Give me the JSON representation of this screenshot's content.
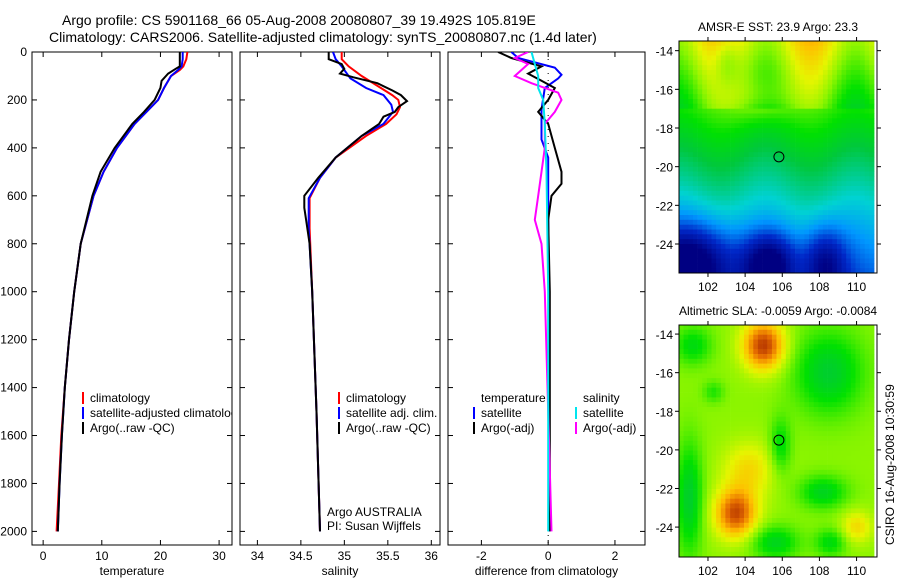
{
  "title": {
    "line1": "Argo profile: CS 5901168_66 05-Aug-2008 20080807_39 19.492S 105.819E",
    "line2": "Climatology: CARS2006. Satellite-adjusted climatology: synTS_20080807.nc (1.4d later)"
  },
  "footer_stamp": "CSIRO 16-Aug-2008 10:30:59",
  "colors": {
    "red": "#ff0000",
    "blue": "#0000ff",
    "black": "#000000",
    "cyan": "#00e5ee",
    "magenta": "#ff00ff"
  },
  "chart_data": [
    {
      "type": "line",
      "id": "temperature",
      "xlabel": "temperature",
      "xlim": [
        -1.9,
        32.2
      ],
      "ylim": [
        0,
        2055
      ],
      "xticks": [
        0,
        10,
        20,
        30
      ],
      "xtick_labels": [
        "0",
        "10",
        "20",
        "30"
      ],
      "yticks": [
        0,
        200,
        400,
        600,
        800,
        1000,
        1200,
        1400,
        1600,
        1800,
        2000
      ],
      "ytick_labels": [
        "0",
        "200",
        "400",
        "600",
        "800",
        "1000",
        "1200",
        "1400",
        "1600",
        "1800",
        "2000"
      ],
      "legend": [
        {
          "label": "climatology",
          "color": "#ff0000"
        },
        {
          "label": "satellite-adjusted climatology",
          "color": "#0000ff"
        },
        {
          "label": "Argo(..raw -QC)",
          "color": "#000000"
        }
      ],
      "series": [
        {
          "name": "climatology",
          "color": "#ff0000",
          "depth": [
            0,
            30,
            60,
            75,
            100,
            150,
            200,
            250,
            300,
            400,
            500,
            600,
            800,
            1000,
            1200,
            1400,
            1600,
            1800,
            2000
          ],
          "values": [
            24.6,
            24.4,
            23.9,
            23.3,
            21.8,
            20.6,
            19.6,
            17.6,
            15.6,
            12.6,
            10.3,
            8.6,
            6.4,
            5.3,
            4.4,
            3.7,
            3.1,
            2.7,
            2.3
          ]
        },
        {
          "name": "satellite-adjusted climatology",
          "color": "#0000ff",
          "depth": [
            0,
            30,
            60,
            75,
            100,
            150,
            200,
            250,
            300,
            400,
            500,
            600,
            800,
            1000,
            1200,
            1400,
            1600,
            1800,
            2000
          ],
          "values": [
            23.8,
            23.8,
            23.6,
            23.0,
            21.8,
            20.6,
            19.6,
            17.6,
            15.6,
            12.6,
            10.3,
            8.6,
            6.4,
            5.3,
            4.4,
            3.7,
            3.2,
            2.8,
            2.5
          ]
        },
        {
          "name": "Argo(..raw -QC)",
          "color": "#000000",
          "depth": [
            0,
            30,
            60,
            70,
            90,
            120,
            150,
            200,
            250,
            300,
            400,
            500,
            600,
            800,
            1000,
            1200,
            1400,
            1600,
            1800,
            2000
          ],
          "values": [
            23.3,
            23.3,
            23.3,
            22.6,
            21.3,
            20.2,
            20.0,
            19.0,
            17.2,
            15.2,
            12.2,
            9.8,
            8.4,
            6.4,
            5.3,
            4.4,
            3.7,
            3.2,
            2.8,
            2.5
          ]
        }
      ]
    },
    {
      "type": "line",
      "id": "salinity",
      "xlabel": "salinity",
      "xlim": [
        33.8,
        36.1
      ],
      "ylim": [
        0,
        2055
      ],
      "xticks": [
        34,
        34.5,
        35,
        35.5,
        36
      ],
      "xtick_labels": [
        "34",
        "34.5",
        "35",
        "35.5",
        "36"
      ],
      "legend": [
        {
          "label": "climatology",
          "color": "#ff0000"
        },
        {
          "label": "satellite adj. clim.",
          "color": "#0000ff"
        },
        {
          "label": "Argo(..raw -QC)",
          "color": "#000000"
        }
      ],
      "notes": [
        "Argo AUSTRALIA",
        "PI: Susan Wijffels"
      ],
      "series": [
        {
          "name": "climatology",
          "color": "#ff0000",
          "depth": [
            0,
            30,
            60,
            100,
            150,
            180,
            200,
            230,
            260,
            300,
            350,
            440,
            525,
            610,
            735,
            1000,
            1500,
            2000
          ],
          "values": [
            34.97,
            34.97,
            35.05,
            35.2,
            35.42,
            35.55,
            35.62,
            35.64,
            35.6,
            35.48,
            35.25,
            34.9,
            34.72,
            34.6,
            34.6,
            34.63,
            34.68,
            34.72
          ]
        },
        {
          "name": "satellite adj. clim.",
          "color": "#0000ff",
          "depth": [
            0,
            30,
            60,
            110,
            150,
            180,
            220,
            250,
            300,
            350,
            440,
            525,
            610,
            735,
            1000,
            1500,
            2000
          ],
          "values": [
            34.87,
            34.9,
            34.97,
            35.07,
            35.25,
            35.45,
            35.54,
            35.56,
            35.45,
            35.2,
            34.9,
            34.72,
            34.59,
            34.59,
            34.63,
            34.68,
            34.72
          ]
        },
        {
          "name": "Argo(..raw -QC)",
          "color": "#000000",
          "depth": [
            0,
            25,
            30,
            50,
            70,
            90,
            105,
            130,
            160,
            180,
            205,
            230,
            250,
            270,
            300,
            350,
            440,
            525,
            600,
            650,
            700,
            800,
            1000,
            1500,
            2000
          ],
          "values": [
            34.82,
            34.82,
            34.82,
            34.97,
            35.0,
            34.95,
            35.1,
            35.38,
            35.55,
            35.65,
            35.72,
            35.62,
            35.58,
            35.45,
            35.4,
            35.2,
            34.9,
            34.7,
            34.54,
            34.54,
            34.56,
            34.6,
            34.63,
            34.68,
            34.72
          ]
        }
      ]
    },
    {
      "type": "line",
      "id": "difference",
      "xlabel": "difference from climatology",
      "xlim": [
        -3.0,
        2.9
      ],
      "ylim": [
        0,
        2055
      ],
      "xticks": [
        -2,
        0,
        2
      ],
      "xtick_labels": [
        "-2",
        "0",
        "2"
      ],
      "legend_temperature": {
        "header": "temperature",
        "items": [
          {
            "label": "satellite",
            "color": "#0000ff"
          },
          {
            "label": "Argo(-adj)",
            "color": "#000000"
          }
        ]
      },
      "legend_salinity": {
        "header": "salinity",
        "items": [
          {
            "label": "satellite",
            "color": "#00e5ee"
          },
          {
            "label": "Argo(-adj)",
            "color": "#ff00ff"
          }
        ]
      },
      "series": [
        {
          "name": "temperature satellite",
          "color": "#0000ff",
          "depth": [
            0,
            25,
            65,
            95,
            110,
            150,
            240,
            365,
            440,
            600,
            1000,
            2000
          ],
          "values": [
            -1.1,
            -0.9,
            0.2,
            0.4,
            0.3,
            -0.1,
            -0.2,
            -0.2,
            0.0,
            0.0,
            0.02,
            0.03
          ]
        },
        {
          "name": "temperature Argo(-adj)",
          "color": "#000000",
          "depth": [
            0,
            25,
            60,
            90,
            120,
            150,
            200,
            250,
            300,
            400,
            500,
            550,
            600,
            700,
            1000,
            2000
          ],
          "values": [
            -1.5,
            -1.1,
            -0.2,
            -0.6,
            -0.2,
            0.2,
            0.0,
            -0.3,
            0.0,
            0.2,
            0.4,
            0.4,
            0.1,
            0.0,
            0.05,
            0.05
          ]
        },
        {
          "name": "salinity Argo(-adj)",
          "color": "#ff00ff",
          "depth": [
            0,
            25,
            50,
            100,
            130,
            170,
            200,
            250,
            300,
            400,
            600,
            700,
            800,
            1000,
            1500,
            2000
          ],
          "values": [
            -0.6,
            -1.0,
            -0.6,
            -1.0,
            -0.5,
            0.3,
            0.4,
            0.2,
            -0.1,
            -0.1,
            -0.3,
            -0.4,
            -0.2,
            -0.1,
            0.0,
            0.1
          ]
        },
        {
          "name": "salinity satellite",
          "color": "#00e5ee",
          "depth": [
            0,
            50,
            100,
            150,
            200,
            300,
            500,
            1000,
            2000
          ],
          "values": [
            -0.5,
            -0.4,
            -0.3,
            -0.3,
            -0.15,
            -0.1,
            -0.05,
            0.0,
            0.0
          ]
        }
      ]
    },
    {
      "type": "heatmap",
      "id": "sst-map",
      "title": "AMSR-E SST: 23.9 Argo: 23.3",
      "xlim": [
        100.44,
        111.1
      ],
      "ylim": [
        -25.5,
        -13.5
      ],
      "xticks": [
        102,
        104,
        106,
        108,
        110
      ],
      "xtick_labels": [
        "102",
        "104",
        "106",
        "108",
        "110"
      ],
      "yticks": [
        -14,
        -16,
        -18,
        -20,
        -22,
        -24
      ],
      "ytick_labels": [
        "-14",
        "-16",
        "-18",
        "-20",
        "-22",
        "-24"
      ],
      "argo_position": {
        "lon": 105.819,
        "lat": -19.492
      }
    },
    {
      "type": "heatmap",
      "id": "sla-map",
      "title": "Altimetric SLA: -0.0059 Argo: -0.0084",
      "xlim": [
        100.44,
        111.1
      ],
      "ylim": [
        -25.55,
        -13.53
      ],
      "xticks": [
        102,
        104,
        106,
        108,
        110
      ],
      "xtick_labels": [
        "102",
        "104",
        "106",
        "108",
        "110"
      ],
      "yticks": [
        -14,
        -16,
        -18,
        -20,
        -22,
        -24
      ],
      "ytick_labels": [
        "-14",
        "-16",
        "-18",
        "-20",
        "-22",
        "-24"
      ],
      "argo_position": {
        "lon": 105.819,
        "lat": -19.492
      }
    }
  ]
}
